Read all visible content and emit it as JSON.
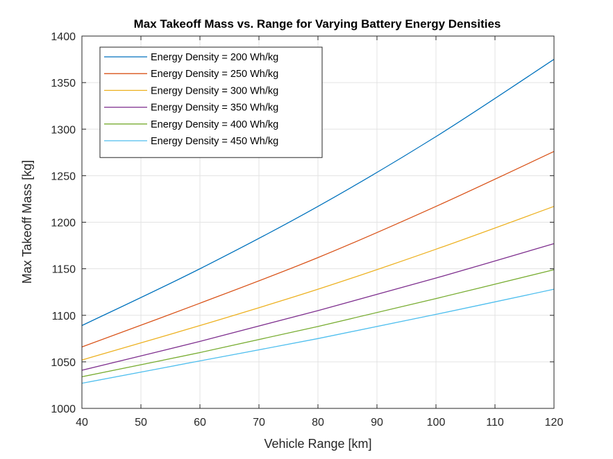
{
  "chart_data": {
    "type": "line",
    "title": "Max Takeoff Mass vs. Range for Varying Battery Energy Densities",
    "xlabel": "Vehicle Range [km]",
    "ylabel": "Max Takeoff Mass [kg]",
    "xlim": [
      40,
      120
    ],
    "ylim": [
      1000,
      1400
    ],
    "xticks": [
      40,
      50,
      60,
      70,
      80,
      90,
      100,
      110,
      120
    ],
    "yticks": [
      1000,
      1050,
      1100,
      1150,
      1200,
      1250,
      1300,
      1350,
      1400
    ],
    "grid": true,
    "legend_position": "top-left",
    "x": [
      40,
      60,
      80,
      100,
      120
    ],
    "series": [
      {
        "name": "Energy Density = 200 Wh/kg",
        "color": "#0072BD",
        "values": [
          1089,
          1150,
          1217,
          1292,
          1375
        ]
      },
      {
        "name": "Energy Density = 250 Wh/kg",
        "color": "#D95319",
        "values": [
          1066,
          1113,
          1162,
          1217,
          1276
        ]
      },
      {
        "name": "Energy Density = 300 Wh/kg",
        "color": "#EDB120",
        "values": [
          1052,
          1089,
          1128,
          1171,
          1217
        ]
      },
      {
        "name": "Energy Density = 350 Wh/kg",
        "color": "#7E2F8E",
        "values": [
          1041,
          1072,
          1105,
          1140,
          1177
        ]
      },
      {
        "name": "Energy Density = 400 Wh/kg",
        "color": "#77AC30",
        "values": [
          1034,
          1060,
          1088,
          1118,
          1149
        ]
      },
      {
        "name": "Energy Density = 450 Wh/kg",
        "color": "#4DBEEE",
        "values": [
          1027,
          1051,
          1075,
          1101,
          1128
        ]
      }
    ]
  }
}
